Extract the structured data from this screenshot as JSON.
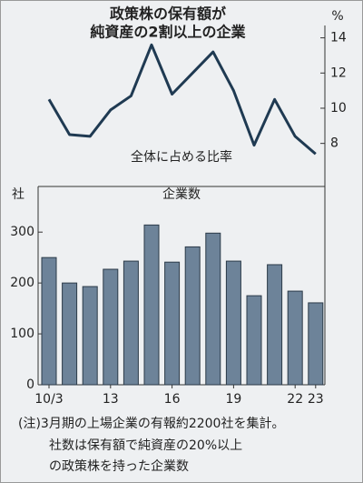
{
  "chart_data": [
    {
      "type": "line",
      "title": [
        "政策株の保有額が",
        "純資産の2割以上の企業"
      ],
      "y_label": "%",
      "annotation": "全体に占める比率",
      "categories": [
        "10/3",
        null,
        null,
        "13",
        null,
        null,
        "16",
        null,
        null,
        "19",
        null,
        null,
        "22",
        "23"
      ],
      "values": [
        10.5,
        8.5,
        8.4,
        9.9,
        10.7,
        13.6,
        10.8,
        12.0,
        13.2,
        11.0,
        7.9,
        10.5,
        8.4,
        7.4
      ],
      "color": "#1f3a52",
      "ylim": [
        7,
        14.6
      ],
      "yticks": [
        8,
        10,
        12,
        14
      ],
      "y_axis_side": "right"
    },
    {
      "type": "bar",
      "title": "企業数",
      "y_label": "社",
      "categories": [
        "10/3",
        null,
        null,
        "13",
        null,
        null,
        "16",
        null,
        null,
        "19",
        null,
        null,
        "22",
        "23"
      ],
      "values": [
        250,
        200,
        193,
        227,
        243,
        314,
        241,
        271,
        298,
        243,
        175,
        236,
        184,
        161
      ],
      "color": "#6d8399",
      "ylim": [
        0,
        320
      ],
      "yticks": [
        0,
        100,
        200,
        300
      ],
      "y_axis_side": "left",
      "notes": [
        "(注)3月期の上場企業の有報約2200社を集計。",
        "社数は保有額で純資産の20%以上",
        "の政策株を持った企業数"
      ]
    }
  ]
}
